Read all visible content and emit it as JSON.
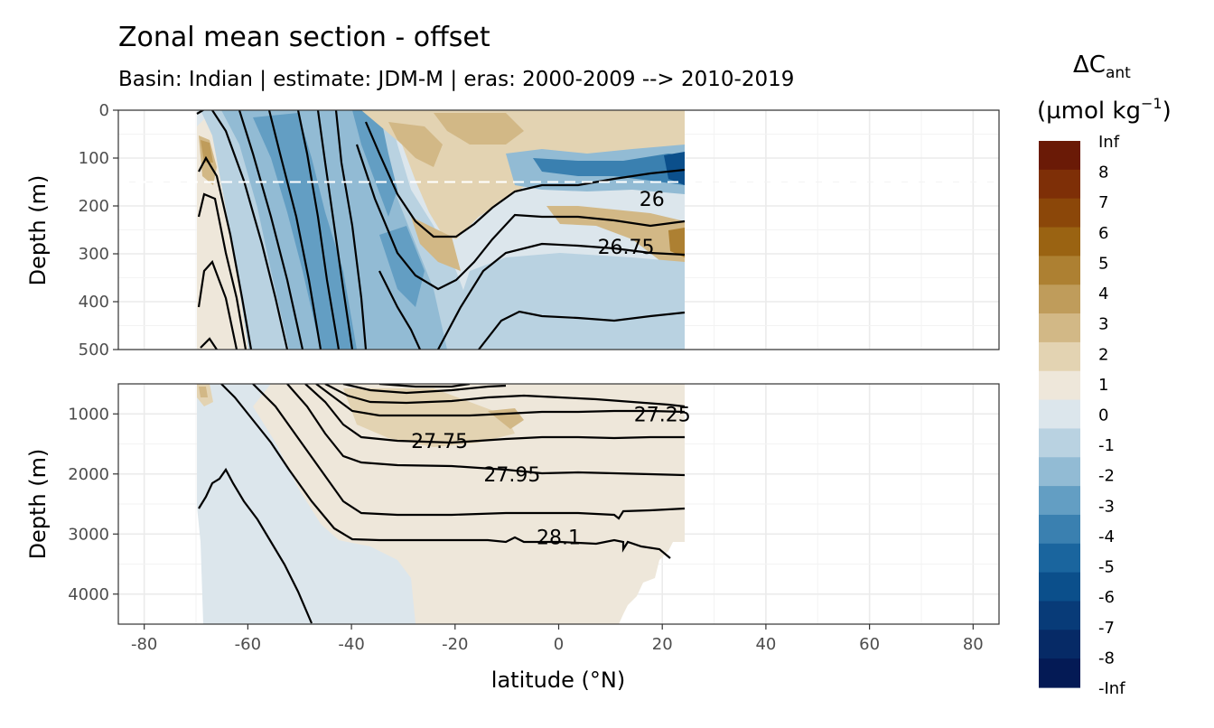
{
  "chart_data": {
    "type": "heatmap",
    "title": "Zonal mean section - offset",
    "subtitle": "Basin: Indian | estimate: JDM-M | eras: 2000-2009 --> 2010-2019",
    "xlabel": "latitude (°N)",
    "ylabel": "Depth (m)",
    "xlim": [
      -85,
      85
    ],
    "x_ticks": [
      "-80",
      "-60",
      "-40",
      "-20",
      "0",
      "20",
      "40",
      "60",
      "80"
    ],
    "panels": [
      {
        "name": "upper",
        "ylim": [
          0,
          500
        ],
        "y_ticks": [
          "0",
          "100",
          "200",
          "300",
          "400",
          "500"
        ],
        "reference_line_depth": 150,
        "contour_labels": [
          {
            "text": "26",
            "lat": 18,
            "depth": 185
          },
          {
            "text": "26.75",
            "lat": 13,
            "depth": 285
          }
        ]
      },
      {
        "name": "lower",
        "ylim": [
          500,
          4500
        ],
        "y_ticks": [
          "1000",
          "2000",
          "3000",
          "4000"
        ],
        "contour_labels": [
          {
            "text": "27.25",
            "lat": 20,
            "depth": 1000
          },
          {
            "text": "27.75",
            "lat": -23,
            "depth": 1450
          },
          {
            "text": "27.95",
            "lat": -9,
            "depth": 2000
          },
          {
            "text": "28.1",
            "lat": 0,
            "depth": 3050
          }
        ]
      }
    ],
    "legend": {
      "title_main": "ΔC",
      "title_sub": "ant",
      "title_unit": "(µmol kg",
      "title_exp": "−1",
      "title_close": ")",
      "placement": "right",
      "labels": [
        "Inf",
        "8",
        "7",
        "6",
        "5",
        "4",
        "3",
        "2",
        "1",
        "0",
        "-1",
        "-2",
        "-3",
        "-4",
        "-5",
        "-6",
        "-7",
        "-8",
        "-Inf"
      ],
      "colors": [
        "#6a1a06",
        "#7e2f07",
        "#8b4709",
        "#9a6312",
        "#ad8032",
        "#bf9c5b",
        "#d2b886",
        "#e3d3b2",
        "#eee7da",
        "#dce6ec",
        "#b9d2e1",
        "#92bbd4",
        "#639ec3",
        "#3a80b0",
        "#1a659e",
        "#0b4f8b",
        "#083b78",
        "#062a66",
        "#041a55"
      ]
    }
  }
}
